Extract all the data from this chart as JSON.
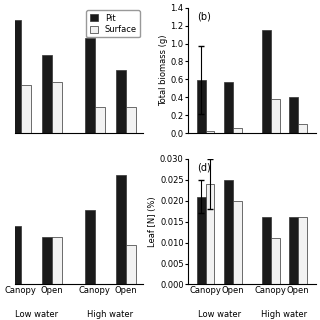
{
  "panel_a": {
    "label": "",
    "pit_values": [
      0.95,
      0.65,
      0.8,
      0.53
    ],
    "surface_values": [
      0.4,
      0.43,
      0.22,
      0.22
    ],
    "ylim": [
      0,
      1.05
    ],
    "show_ylabel": false,
    "show_yticks": false,
    "show_legend": true
  },
  "panel_b": {
    "label": "(b)",
    "pit_values": [
      0.59,
      0.57,
      1.15,
      0.4
    ],
    "surface_values": [
      0.03,
      0.06,
      0.38,
      0.1
    ],
    "pit_errors": [
      0.38,
      0.0,
      0.0,
      0.0
    ],
    "surface_errors": [
      0.0,
      0.0,
      0.0,
      0.0
    ],
    "ylim": [
      0,
      1.4
    ],
    "yticks": [
      0.0,
      0.2,
      0.4,
      0.6,
      0.8,
      1.0,
      1.2,
      1.4
    ],
    "ylabel": "Total biomass (g)",
    "show_ylabel": true,
    "show_yticks": true
  },
  "panel_c": {
    "label": "",
    "pit_values": [
      0.15,
      0.12,
      0.19,
      0.28
    ],
    "surface_values": [
      0.0,
      0.12,
      0.0,
      0.1
    ],
    "ylim": [
      0,
      0.32
    ],
    "show_ylabel": false,
    "show_yticks": false
  },
  "panel_d": {
    "label": "(d)",
    "pit_values": [
      0.021,
      0.025,
      0.016,
      0.016
    ],
    "surface_values": [
      0.024,
      0.02,
      0.011,
      0.016
    ],
    "pit_errors": [
      0.004,
      0.0,
      0.0,
      0.0
    ],
    "surface_errors": [
      0.006,
      0.0,
      0.0,
      0.0
    ],
    "ylim": [
      0,
      0.03
    ],
    "yticks": [
      0.0,
      0.005,
      0.01,
      0.015,
      0.02,
      0.025,
      0.03
    ],
    "ylabel": "Leaf [N] (%)",
    "show_ylabel": true,
    "show_yticks": true
  },
  "categories": [
    "Canopy",
    "Open",
    "Canopy",
    "Open"
  ],
  "water_labels": [
    "Low water",
    "High water"
  ],
  "bar_width": 0.32,
  "pit_color": "#1a1a1a",
  "surface_color": "#f2f2f2",
  "edge_color": "#333333",
  "font_size": 7,
  "tick_font_size": 6
}
